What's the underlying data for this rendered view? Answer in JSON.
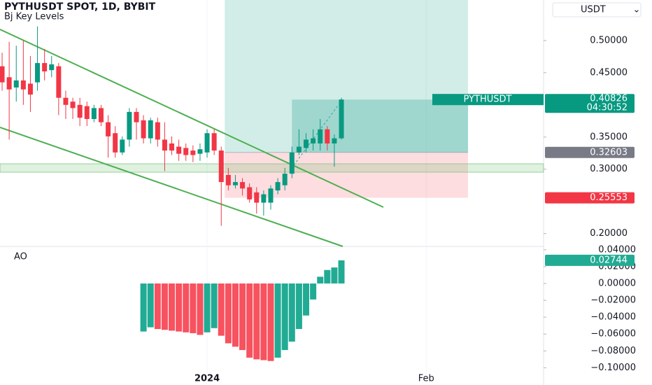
{
  "chart_data": [
    {
      "type": "candlestick",
      "title": "PYTHUSDT SPOT, 1D, BYBIT",
      "subtitle": "Bj Key Levels",
      "y_axis_label": "USDT",
      "symbol": "PYTHUSDT",
      "countdown": "04:30:52",
      "up_color": "#089981",
      "down_color": "#f23645",
      "x": [
        0,
        1,
        2,
        3,
        4,
        5,
        6,
        7,
        8,
        9,
        10,
        11,
        12,
        13,
        14,
        15,
        16,
        17,
        18,
        19,
        20,
        21,
        22,
        23,
        24,
        25,
        26,
        27,
        28,
        29,
        30,
        31,
        32,
        33,
        34,
        35,
        36,
        37,
        38,
        39,
        40,
        41,
        42,
        43,
        44,
        45,
        46,
        47,
        48
      ],
      "open": [
        0.46,
        0.443,
        0.427,
        0.438,
        0.433,
        0.435,
        0.465,
        0.454,
        0.46,
        0.411,
        0.405,
        0.4,
        0.398,
        0.378,
        0.395,
        0.373,
        0.356,
        0.326,
        0.346,
        0.389,
        0.376,
        0.348,
        0.373,
        0.346,
        0.34,
        0.335,
        0.333,
        0.329,
        0.324,
        0.326,
        0.356,
        0.329,
        0.291,
        0.275,
        0.28,
        0.272,
        0.264,
        0.248,
        0.248,
        0.267,
        0.275,
        0.293,
        0.326,
        0.333,
        0.34,
        0.34,
        0.362,
        0.34,
        0.348
      ],
      "high": [
        0.481,
        0.498,
        0.492,
        0.5,
        0.476,
        0.522,
        0.487,
        0.476,
        0.465,
        0.422,
        0.411,
        0.411,
        0.405,
        0.4,
        0.4,
        0.384,
        0.367,
        0.351,
        0.395,
        0.395,
        0.384,
        0.38,
        0.38,
        0.373,
        0.351,
        0.346,
        0.34,
        0.337,
        0.34,
        0.362,
        0.362,
        0.335,
        0.302,
        0.291,
        0.286,
        0.278,
        0.272,
        0.267,
        0.275,
        0.286,
        0.302,
        0.335,
        0.362,
        0.356,
        0.362,
        0.378,
        0.367,
        0.354,
        0.411
      ],
      "low": [
        0.422,
        0.346,
        0.405,
        0.4,
        0.389,
        0.422,
        0.438,
        0.443,
        0.384,
        0.378,
        0.378,
        0.367,
        0.367,
        0.373,
        0.367,
        0.318,
        0.318,
        0.322,
        0.335,
        0.346,
        0.34,
        0.34,
        0.335,
        0.297,
        0.322,
        0.313,
        0.313,
        0.311,
        0.313,
        0.318,
        0.322,
        0.212,
        0.267,
        0.27,
        0.259,
        0.248,
        0.231,
        0.228,
        0.237,
        0.261,
        0.267,
        0.286,
        0.322,
        0.326,
        0.329,
        0.329,
        0.329,
        0.304,
        0.346
      ],
      "close": [
        0.435,
        0.424,
        0.438,
        0.424,
        0.416,
        0.465,
        0.452,
        0.463,
        0.411,
        0.4,
        0.395,
        0.38,
        0.378,
        0.395,
        0.373,
        0.351,
        0.326,
        0.346,
        0.389,
        0.373,
        0.348,
        0.376,
        0.346,
        0.329,
        0.329,
        0.324,
        0.322,
        0.322,
        0.331,
        0.356,
        0.329,
        0.28,
        0.275,
        0.28,
        0.27,
        0.253,
        0.248,
        0.261,
        0.27,
        0.28,
        0.293,
        0.326,
        0.335,
        0.346,
        0.348,
        0.362,
        0.34,
        0.348,
        0.40826
      ],
      "entry_price": 0.32603,
      "stop_price": 0.25553,
      "xlim": [
        -0.3,
        76.6
      ],
      "xticks": [
        {
          "value": 29,
          "label": "2024"
        },
        {
          "value": 60,
          "label": "Feb"
        }
      ],
      "ylim": [
        0.18,
        0.563
      ],
      "yticks": [
        {
          "value": 0.2,
          "label": "0.20000"
        },
        {
          "value": 0.3,
          "label": "0.30000"
        },
        {
          "value": 0.35,
          "label": "0.35000"
        },
        {
          "value": 0.45,
          "label": "0.45000"
        },
        {
          "value": 0.5,
          "label": "0.50000"
        }
      ]
    },
    {
      "type": "bar",
      "title": "AO",
      "up_color": "#22ab94",
      "down_color": "#f7525f",
      "values": [
        null,
        null,
        null,
        null,
        null,
        null,
        null,
        null,
        null,
        null,
        null,
        null,
        null,
        null,
        null,
        null,
        null,
        null,
        null,
        null,
        -0.057,
        -0.052,
        -0.054,
        -0.055,
        -0.056,
        -0.057,
        -0.058,
        -0.059,
        -0.061,
        -0.058,
        -0.053,
        -0.062,
        -0.071,
        -0.075,
        -0.079,
        -0.088,
        -0.09,
        -0.091,
        -0.092,
        -0.088,
        -0.079,
        -0.069,
        -0.054,
        -0.038,
        -0.019,
        0.008,
        0.016,
        0.019,
        0.02744
      ],
      "ylim": [
        -0.108,
        0.044
      ],
      "yticks": [
        {
          "value": 0.04,
          "label": "0.04000"
        },
        {
          "value": 0.02,
          "label": "0.02000"
        },
        {
          "value": 0,
          "label": "0.00000"
        },
        {
          "value": -0.02,
          "label": "−0.02000"
        },
        {
          "value": -0.04,
          "label": "−0.04000"
        },
        {
          "value": -0.06,
          "label": "−0.06000"
        },
        {
          "value": -0.08,
          "label": "−0.08000"
        },
        {
          "value": -0.1,
          "label": "−0.10000"
        }
      ]
    }
  ]
}
